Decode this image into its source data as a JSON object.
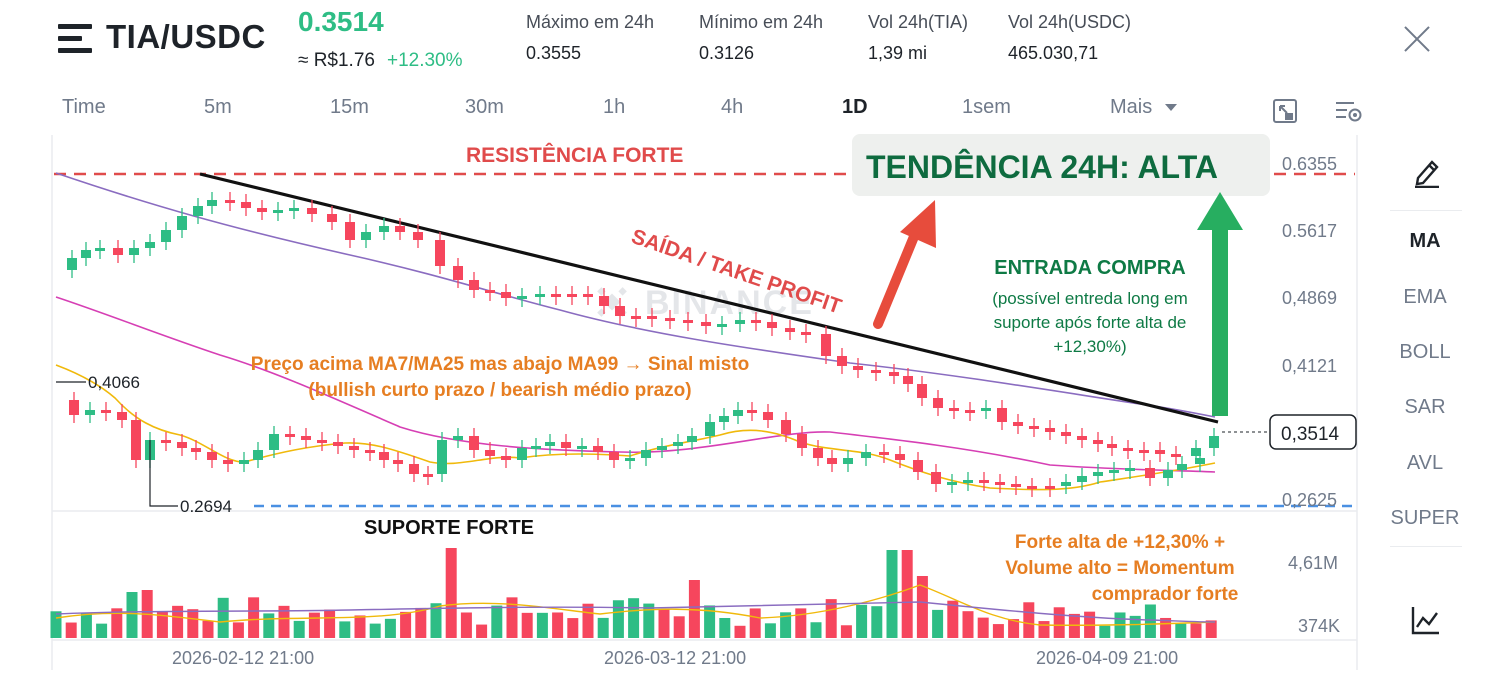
{
  "header": {
    "pair": "TIA/USDC",
    "price": "0.3514",
    "fiat": "≈ R$1.76",
    "change": "+12.30%",
    "stats": [
      {
        "label": "Máximo em 24h",
        "value": "0.3555"
      },
      {
        "label": "Mínimo em 24h",
        "value": "0.3126"
      },
      {
        "label": "Vol 24h(TIA)",
        "value": "1,39 mi"
      },
      {
        "label": "Vol 24h(USDC)",
        "value": "465.030,71"
      }
    ]
  },
  "tabs": [
    "Time",
    "5m",
    "15m",
    "30m",
    "1h",
    "4h",
    "1D",
    "1sem",
    "Mais"
  ],
  "active_tab": "1D",
  "side_items": [
    "MA",
    "EMA",
    "BOLL",
    "SAR",
    "AVL",
    "SUPER"
  ],
  "active_side_item": "MA",
  "icons": [
    "menu-icon",
    "close-icon",
    "fullscreen-icon",
    "settings-icon",
    "pencil-icon",
    "indicator-chart-icon",
    "dropdown-triangle-icon",
    "binance-logo-icon"
  ],
  "colors": {
    "up": "#2ebd85",
    "down": "#f6465d",
    "resistance": "#e04b4b",
    "support": "#4a90e2",
    "ma7": "#f0b90b",
    "ma25": "#d63fb4",
    "ma99": "#8a6cc0",
    "annotation_orange": "#e67e22",
    "annotation_green": "#0e7a45",
    "arrow_red": "#e74c3c",
    "arrow_green": "#27ae60"
  },
  "chart": {
    "watermark": "BINANCE",
    "price_labels": [
      "0.6355",
      "0.5617",
      "0,4869",
      "0,4121",
      "0,2625"
    ],
    "current_price_label": "0,3514",
    "volume_labels": [
      "4,61M",
      "374K"
    ],
    "date_labels": [
      "2026-02-12 21:00",
      "2026-03-12 21:00",
      "2026-04-09 21:00"
    ],
    "high_marker": "0,4066",
    "low_marker": "0.2694",
    "annotations": {
      "resistance": "RESISTÊNCIA FORTE",
      "trend": "TENDÊNCIA 24H: ALTA",
      "take_profit": "SAÍDA / TAKE PROFIT",
      "entry_title": "ENTRADA COMPRA",
      "entry_lines": [
        "(possível entreda long em",
        "suporte após forte alta de",
        "+12,30%)"
      ],
      "ma_lines": [
        "Preço acima MA7/MA25 mas abajo MA99 → Sinal misto",
        "(bullish curto prazo / bearish médio prazo)"
      ],
      "support": "SUPORTE FORTE",
      "volume_lines": [
        "Forte alta de +12,30% +",
        "Volume alto = Momentum",
        "comprador forte"
      ]
    }
  }
}
